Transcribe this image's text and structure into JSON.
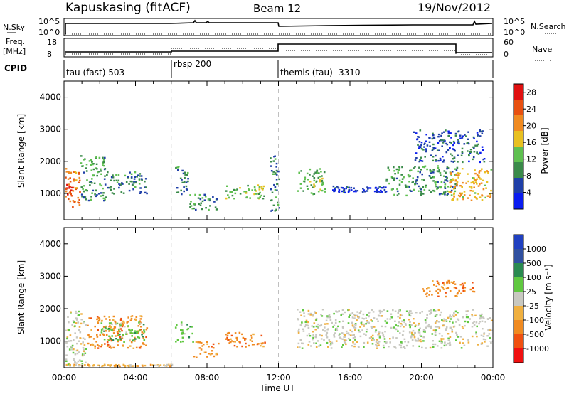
{
  "header": {
    "station": "Kapuskasing (fitACF)",
    "beam": "Beam 12",
    "date": "19/Nov/2012"
  },
  "top_panels": {
    "nsky_label": "N.Sky",
    "nsky_ticks": [
      "10^5",
      "10^0"
    ],
    "nsearch_label": "N.Search",
    "nsearch_ticks": [
      "10^5",
      "10^0"
    ],
    "freq_label": "Freq.",
    "freq_unit": "[MHz]",
    "freq_ticks": [
      "18",
      "8"
    ],
    "nave_label": "Nave",
    "nave_ticks": [
      "60",
      "0"
    ],
    "cpid_label": "CPID"
  },
  "cpid_segments": [
    {
      "label": "tau (fast) 503",
      "start_h": 0
    },
    {
      "label": "rbsp 200",
      "start_h": 6
    },
    {
      "label": "themis (tau) -3310",
      "start_h": 12
    }
  ],
  "colors": {
    "power": [
      "#0a1cf0",
      "#1f3fa8",
      "#3a8a4a",
      "#5fc050",
      "#e8c020",
      "#f08a20",
      "#e85010",
      "#e01010"
    ],
    "velocity": [
      "#f01010",
      "#f05010",
      "#f08a20",
      "#f0b040",
      "#c8c8c0",
      "#60c840",
      "#2a8a50",
      "#3050a0",
      "#2040c0"
    ],
    "dash": "#c0c0c0"
  },
  "chart_data": [
    {
      "type": "heatmap",
      "title": "",
      "xlabel": "Time UT",
      "ylabel": "Slant Range [km]",
      "xlim": [
        0,
        24
      ],
      "ylim": [
        180,
        4500
      ],
      "x_ticks": [
        "00:00",
        "04:00",
        "08:00",
        "12:00",
        "16:00",
        "20:00",
        "00:00"
      ],
      "y_ticks": [
        "1000",
        "2000",
        "3000",
        "4000"
      ],
      "colorbar_label": "Power [dB]",
      "colorbar_ticks": [
        "4",
        "8",
        "12",
        "16",
        "20",
        "24",
        "28"
      ],
      "colorbar_range": [
        0,
        30
      ],
      "regions": [
        {
          "t": [
            0.0,
            0.9
          ],
          "r": [
            600,
            1800
          ],
          "v": 22
        },
        {
          "t": [
            0.0,
            0.4
          ],
          "r": [
            900,
            1300
          ],
          "v": 28
        },
        {
          "t": [
            0.9,
            2.3
          ],
          "r": [
            800,
            2200
          ],
          "v": 10
        },
        {
          "t": [
            2.3,
            4.6
          ],
          "r": [
            1000,
            1700
          ],
          "v": 9
        },
        {
          "t": [
            6.2,
            6.9
          ],
          "r": [
            1000,
            1900
          ],
          "v": 8
        },
        {
          "t": [
            7.0,
            8.6
          ],
          "r": [
            500,
            1000
          ],
          "v": 10
        },
        {
          "t": [
            9.0,
            11.2
          ],
          "r": [
            850,
            1300
          ],
          "v": 14
        },
        {
          "t": [
            11.5,
            12.0
          ],
          "r": [
            400,
            2200
          ],
          "v": 8
        },
        {
          "t": [
            13.0,
            14.6
          ],
          "r": [
            1000,
            1800
          ],
          "v": 12
        },
        {
          "t": [
            15.0,
            18.0
          ],
          "r": [
            1050,
            1250
          ],
          "v": 4
        },
        {
          "t": [
            18.0,
            22.0
          ],
          "r": [
            950,
            1900
          ],
          "v": 10
        },
        {
          "t": [
            21.5,
            24.0
          ],
          "r": [
            800,
            1800
          ],
          "v": 18
        },
        {
          "t": [
            19.5,
            23.5
          ],
          "r": [
            2000,
            3000
          ],
          "v": 6
        }
      ]
    },
    {
      "type": "heatmap",
      "title": "",
      "xlabel": "Time UT",
      "ylabel": "Slant Range [km]",
      "xlim": [
        0,
        24
      ],
      "ylim": [
        180,
        4500
      ],
      "x_ticks": [
        "00:00",
        "04:00",
        "08:00",
        "12:00",
        "16:00",
        "20:00",
        "00:00"
      ],
      "y_ticks": [
        "1000",
        "2000",
        "3000",
        "4000"
      ],
      "colorbar_label": "Velocity [m s⁻¹]",
      "colorbar_ticks": [
        "1000",
        "500",
        "100",
        "25",
        "-25",
        "-100",
        "-500",
        "-1000"
      ],
      "regions": [
        {
          "t": [
            0.0,
            1.2
          ],
          "r": [
            300,
            2000
          ],
          "v": 4
        },
        {
          "t": [
            1.2,
            4.6
          ],
          "r": [
            800,
            1800
          ],
          "v": 2
        },
        {
          "t": [
            2.0,
            4.6
          ],
          "r": [
            1000,
            1600
          ],
          "v": 5
        },
        {
          "t": [
            6.2,
            7.2
          ],
          "r": [
            1000,
            1600
          ],
          "v": 5
        },
        {
          "t": [
            7.2,
            8.6
          ],
          "r": [
            500,
            1000
          ],
          "v": 2
        },
        {
          "t": [
            9.0,
            11.2
          ],
          "r": [
            850,
            1300
          ],
          "v": 2
        },
        {
          "t": [
            0.0,
            6.0
          ],
          "r": [
            200,
            300
          ],
          "v": 3
        },
        {
          "t": [
            13.0,
            24.0
          ],
          "r": [
            800,
            2000
          ],
          "v": 4
        },
        {
          "t": [
            20.0,
            23.0
          ],
          "r": [
            2400,
            2900
          ],
          "v": 2
        }
      ]
    }
  ]
}
